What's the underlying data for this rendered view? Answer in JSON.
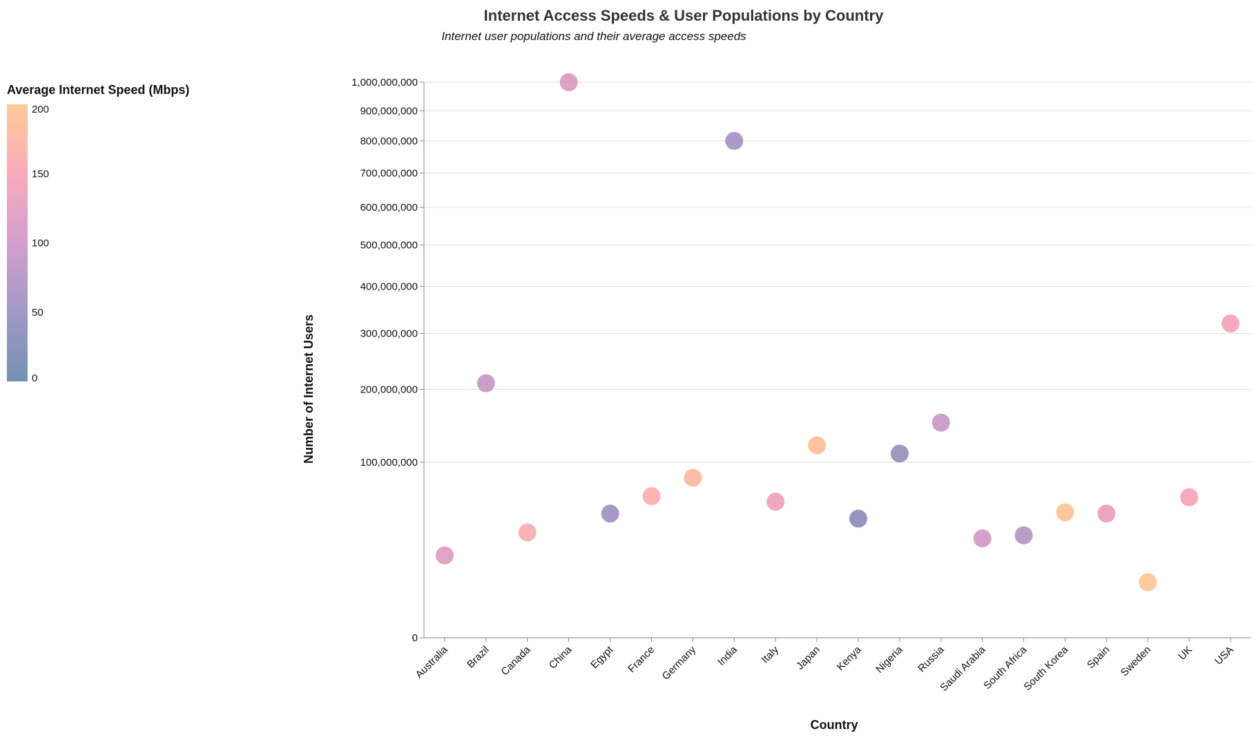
{
  "chart_data": {
    "type": "scatter",
    "title": "Internet Access Speeds & User Populations by Country",
    "subtitle": "Internet user populations and their average access speeds",
    "xlabel": "Country",
    "ylabel": "Number of Internet Users",
    "y_scale": "sqrt",
    "ylim": [
      0,
      1000000000
    ],
    "y_ticks": [
      0,
      100000000,
      200000000,
      300000000,
      400000000,
      500000000,
      600000000,
      700000000,
      800000000,
      900000000,
      1000000000
    ],
    "y_tick_labels": [
      "0",
      "100,000,000",
      "200,000,000",
      "300,000,000",
      "400,000,000",
      "500,000,000",
      "600,000,000",
      "700,000,000",
      "800,000,000",
      "900,000,000",
      "1,000,000,000"
    ],
    "grid": true,
    "legend": {
      "title": "Average Internet Speed (Mbps)",
      "placement": "top-left",
      "range": [
        0,
        200
      ],
      "tick_values": [
        0,
        50,
        100,
        150,
        200
      ],
      "tick_labels": [
        "0",
        "50",
        "100",
        "150",
        "200"
      ],
      "colors": [
        "#5b7ea4",
        "#9287bb",
        "#c98fc3",
        "#f79cb0",
        "#fec287"
      ]
    },
    "categories": [
      "Australia",
      "Brazil",
      "Canada",
      "China",
      "Egypt",
      "France",
      "Germany",
      "India",
      "Italy",
      "Japan",
      "Kenya",
      "Nigeria",
      "Russia",
      "Saudi Arabia",
      "South Africa",
      "South Korea",
      "Spain",
      "Sweden",
      "UK",
      "USA"
    ],
    "points": [
      {
        "country": "Australia",
        "users": 22000000,
        "speed": 118
      },
      {
        "country": "Brazil",
        "users": 210000000,
        "speed": 92
      },
      {
        "country": "Canada",
        "users": 36000000,
        "speed": 160
      },
      {
        "country": "China",
        "users": 1000000000,
        "speed": 115
      },
      {
        "country": "Egypt",
        "users": 50000000,
        "speed": 55
      },
      {
        "country": "France",
        "users": 65000000,
        "speed": 165
      },
      {
        "country": "Germany",
        "users": 83000000,
        "speed": 178
      },
      {
        "country": "India",
        "users": 800000000,
        "speed": 60
      },
      {
        "country": "Italy",
        "users": 60000000,
        "speed": 140
      },
      {
        "country": "Japan",
        "users": 120000000,
        "speed": 190
      },
      {
        "country": "Kenya",
        "users": 46000000,
        "speed": 35
      },
      {
        "country": "Nigeria",
        "users": 110000000,
        "speed": 45
      },
      {
        "country": "Russia",
        "users": 150000000,
        "speed": 95
      },
      {
        "country": "Saudi Arabia",
        "users": 32000000,
        "speed": 105
      },
      {
        "country": "South Africa",
        "users": 34000000,
        "speed": 75
      },
      {
        "country": "South Korea",
        "users": 51000000,
        "speed": 195
      },
      {
        "country": "Spain",
        "users": 50000000,
        "speed": 130
      },
      {
        "country": "Sweden",
        "users": 10000000,
        "speed": 198
      },
      {
        "country": "UK",
        "users": 64000000,
        "speed": 150
      },
      {
        "country": "USA",
        "users": 320000000,
        "speed": 145
      }
    ]
  }
}
